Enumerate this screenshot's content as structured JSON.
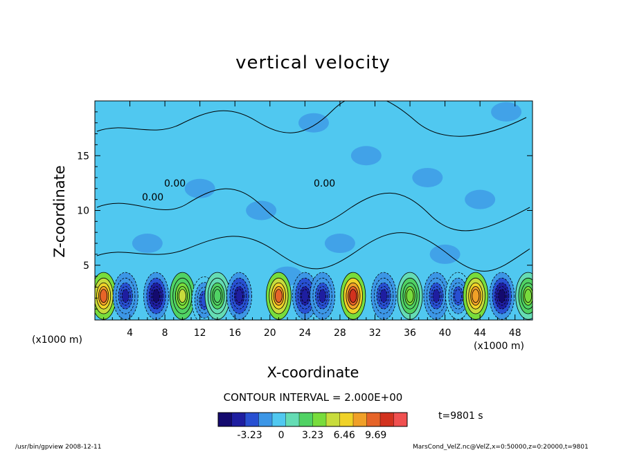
{
  "chart_data": {
    "type": "heatmap",
    "title": "vertical velocity",
    "xlabel": "X-coordinate",
    "ylabel": "Z-coordinate",
    "x_unit": "(x1000 m)",
    "xlim": [
      0,
      50
    ],
    "ylim": [
      0,
      20
    ],
    "x_ticks": [
      "4",
      "8",
      "12",
      "16",
      "20",
      "24",
      "28",
      "32",
      "36",
      "40",
      "44",
      "48"
    ],
    "y_ticks": [
      "5",
      "10",
      "15"
    ],
    "contour_interval": "CONTOUR INTERVAL = 2.000E+00",
    "contour_labels": [
      "0.00",
      "0.00",
      "0.00"
    ],
    "colorbar": {
      "ticks": [
        "-3.23",
        "0",
        "3.23",
        "6.46",
        "9.69"
      ],
      "range": [
        -6.46,
        12.9
      ],
      "colors": [
        "#140a6e",
        "#1e1ea0",
        "#2850d2",
        "#3c96e6",
        "#50c8f0",
        "#64dcb4",
        "#50d264",
        "#78dc3c",
        "#c8dc3c",
        "#f0d228",
        "#f0a028",
        "#e66428",
        "#d2321e",
        "#f05050"
      ]
    },
    "time": "t=9801 s",
    "lower_cells": [
      {
        "x": 1,
        "z": 2.2,
        "value": 9.5
      },
      {
        "x": 3.5,
        "z": 2.2,
        "value": -4
      },
      {
        "x": 7,
        "z": 2.2,
        "value": -6
      },
      {
        "x": 10,
        "z": 2.2,
        "value": 5
      },
      {
        "x": 12.5,
        "z": 1.8,
        "value": -3
      },
      {
        "x": 14,
        "z": 2.2,
        "value": 3
      },
      {
        "x": 16.5,
        "z": 2.2,
        "value": -5
      },
      {
        "x": 21,
        "z": 2.2,
        "value": 10
      },
      {
        "x": 24,
        "z": 2.2,
        "value": -5
      },
      {
        "x": 26,
        "z": 2.2,
        "value": -4
      },
      {
        "x": 29.5,
        "z": 2.2,
        "value": 12
      },
      {
        "x": 33,
        "z": 2.2,
        "value": -4
      },
      {
        "x": 36,
        "z": 2.2,
        "value": 4
      },
      {
        "x": 39,
        "z": 2.2,
        "value": -4
      },
      {
        "x": 41.5,
        "z": 2.2,
        "value": -3
      },
      {
        "x": 43.5,
        "z": 2.2,
        "value": 9
      },
      {
        "x": 46.5,
        "z": 2.2,
        "value": -6
      },
      {
        "x": 49.5,
        "z": 2.2,
        "value": 4
      }
    ]
  },
  "footer": {
    "left": "/usr/bin/gpview   2008-12-11",
    "right": "MarsCond_VelZ.nc@VelZ,x=0:50000,z=0:20000,t=9801"
  }
}
